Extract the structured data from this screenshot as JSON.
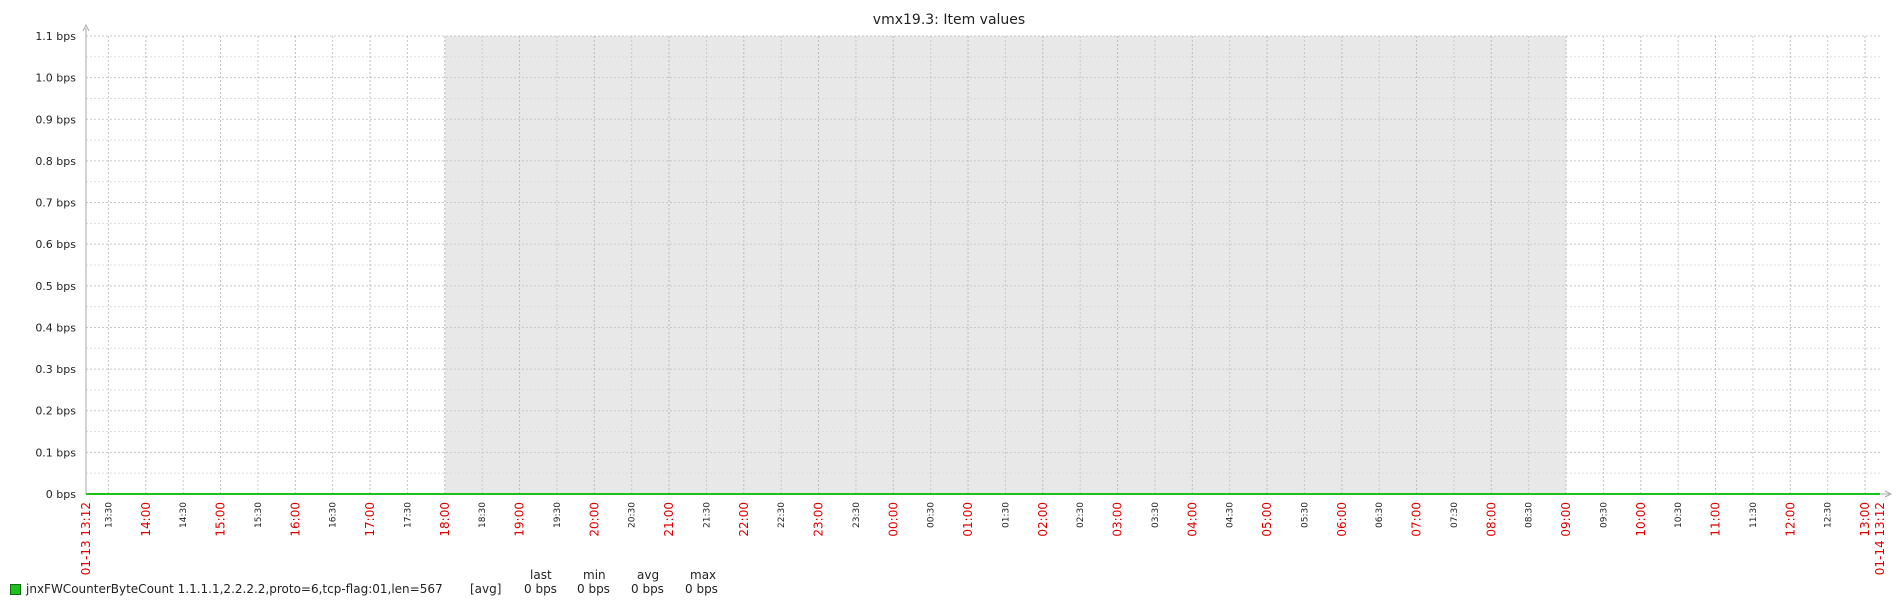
{
  "chart_data": {
    "type": "line",
    "title": "vmx19.3: Item values",
    "ylim": [
      0,
      1.1
    ],
    "y_ticks": [
      "0 bps",
      "0.1 bps",
      "0.2 bps",
      "0.3 bps",
      "0.4 bps",
      "0.5 bps",
      "0.6 bps",
      "0.7 bps",
      "0.8 bps",
      "0.9 bps",
      "1.0 bps",
      "1.1 bps"
    ],
    "x_start_label": "01-13 13:12",
    "x_end_label": "01-14 13:12",
    "x_ticks": [
      {
        "label": "13:30",
        "major": false
      },
      {
        "label": "14:00",
        "major": true
      },
      {
        "label": "14:30",
        "major": false
      },
      {
        "label": "15:00",
        "major": true
      },
      {
        "label": "15:30",
        "major": false
      },
      {
        "label": "16:00",
        "major": true
      },
      {
        "label": "16:30",
        "major": false
      },
      {
        "label": "17:00",
        "major": true
      },
      {
        "label": "17:30",
        "major": false
      },
      {
        "label": "18:00",
        "major": true
      },
      {
        "label": "18:30",
        "major": false
      },
      {
        "label": "19:00",
        "major": true
      },
      {
        "label": "19:30",
        "major": false
      },
      {
        "label": "20:00",
        "major": true
      },
      {
        "label": "20:30",
        "major": false
      },
      {
        "label": "21:00",
        "major": true
      },
      {
        "label": "21:30",
        "major": false
      },
      {
        "label": "22:00",
        "major": true
      },
      {
        "label": "22:30",
        "major": false
      },
      {
        "label": "23:00",
        "major": true
      },
      {
        "label": "23:30",
        "major": false
      },
      {
        "label": "00:00",
        "major": true
      },
      {
        "label": "00:30",
        "major": false
      },
      {
        "label": "01:00",
        "major": true
      },
      {
        "label": "01:30",
        "major": false
      },
      {
        "label": "02:00",
        "major": true
      },
      {
        "label": "02:30",
        "major": false
      },
      {
        "label": "03:00",
        "major": true
      },
      {
        "label": "03:30",
        "major": false
      },
      {
        "label": "04:00",
        "major": true
      },
      {
        "label": "04:30",
        "major": false
      },
      {
        "label": "05:00",
        "major": true
      },
      {
        "label": "05:30",
        "major": false
      },
      {
        "label": "06:00",
        "major": true
      },
      {
        "label": "06:30",
        "major": false
      },
      {
        "label": "07:00",
        "major": true
      },
      {
        "label": "07:30",
        "major": false
      },
      {
        "label": "08:00",
        "major": true
      },
      {
        "label": "08:30",
        "major": false
      },
      {
        "label": "09:00",
        "major": true
      },
      {
        "label": "09:30",
        "major": false
      },
      {
        "label": "10:00",
        "major": true
      },
      {
        "label": "10:30",
        "major": false
      },
      {
        "label": "11:00",
        "major": true
      },
      {
        "label": "11:30",
        "major": false
      },
      {
        "label": "12:00",
        "major": true
      },
      {
        "label": "12:30",
        "major": false
      },
      {
        "label": "13:00",
        "major": true
      }
    ],
    "shaded_period": {
      "from": "18:00",
      "to": "09:00",
      "color": "#e8e8e8"
    },
    "grid": true,
    "series": [
      {
        "name": "jnxFWCounterByteCount 1.1.1.1,2.2.2.2,proto=6,tcp-flag:01,len=567",
        "color": "#19c319",
        "values": [
          0,
          0
        ]
      }
    ],
    "legend": {
      "function": "[avg]",
      "headers": [
        "last",
        "min",
        "avg",
        "max"
      ],
      "values": [
        "0 bps",
        "0 bps",
        "0 bps",
        "0 bps"
      ]
    },
    "colors": {
      "major_tick": "#dd0000",
      "minor_tick": "#222222",
      "grid": "#c8c8c8",
      "axis": "#aaaaaa"
    }
  }
}
